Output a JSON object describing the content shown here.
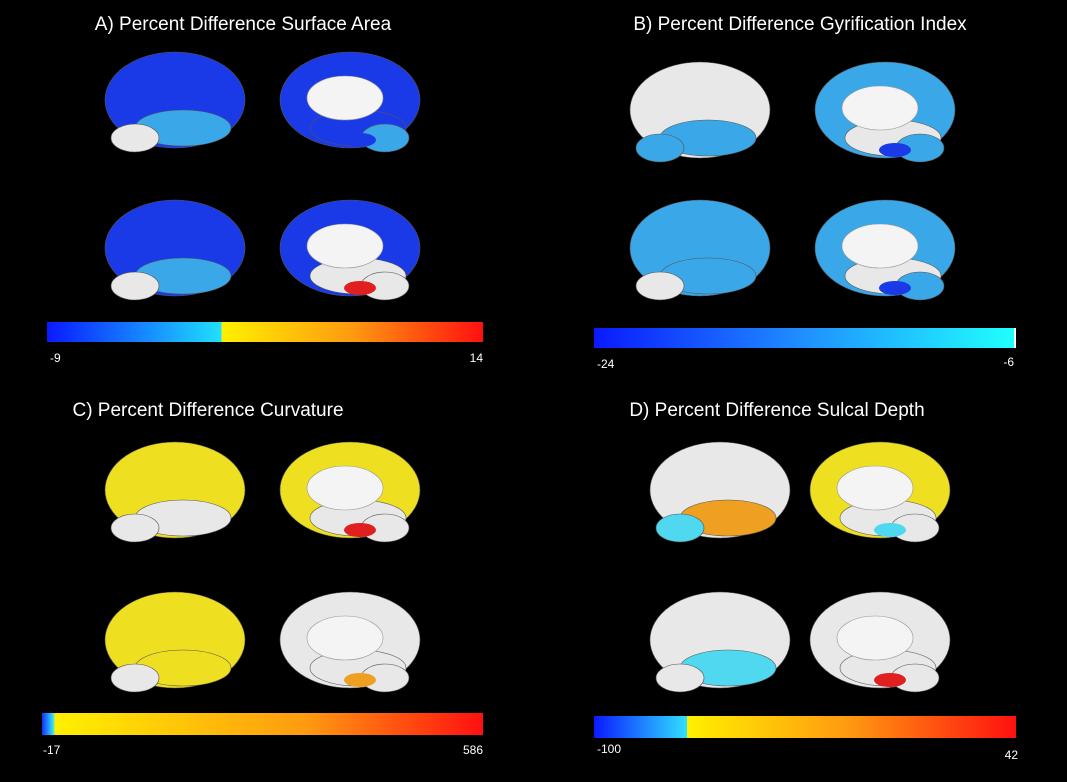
{
  "panels": [
    {
      "title": "A) Percent Difference Surface Area",
      "min": -9,
      "max": 14
    },
    {
      "title": "B) Percent Difference Gyrification Index",
      "min": -24,
      "max": -6
    },
    {
      "title": "C) Percent Difference Curvature",
      "min": -17,
      "max": 586
    },
    {
      "title": "D) Percent Difference Sulcal Depth",
      "min": -100,
      "max": 42
    }
  ]
}
